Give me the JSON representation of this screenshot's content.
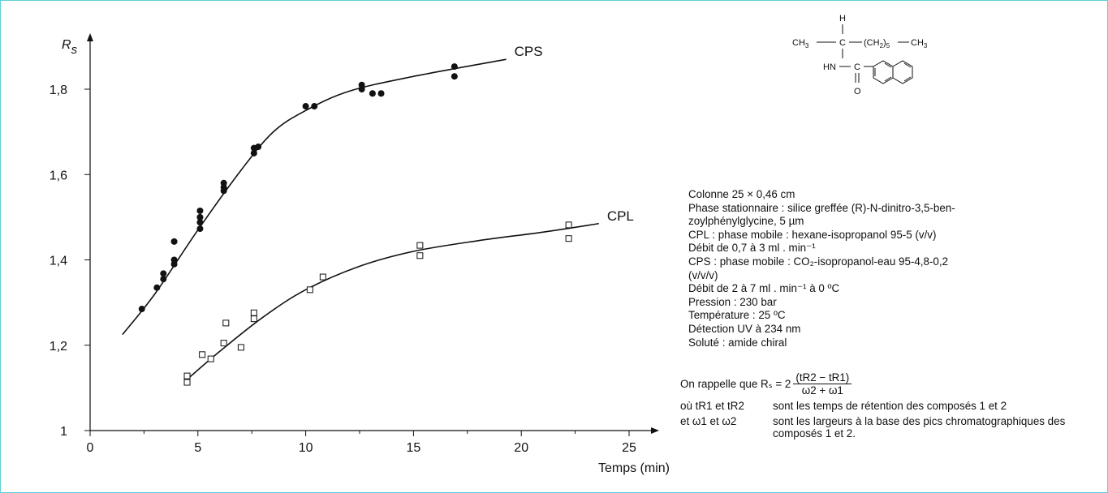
{
  "chart_data": {
    "type": "scatter",
    "title": "",
    "ylabel": "Rs",
    "ylabel_main": "R",
    "ylabel_sub": "s",
    "xlabel": "Temps (min)",
    "xlim": [
      0,
      27
    ],
    "ylim": [
      1,
      1.9
    ],
    "x_ticks": [
      0,
      5,
      10,
      15,
      20,
      25
    ],
    "x_tick_labels": [
      "0",
      "5",
      "10",
      "15",
      "20",
      "25"
    ],
    "y_ticks": [
      1,
      1.2,
      1.4,
      1.6,
      1.8
    ],
    "y_tick_labels": [
      "1",
      "1,2",
      "1,4",
      "1,6",
      "1,8"
    ],
    "grid": false,
    "legend": "none",
    "series": [
      {
        "name": "CPS",
        "marker": "filled-circle",
        "points": [
          [
            2.4,
            1.285
          ],
          [
            3.1,
            1.335
          ],
          [
            3.4,
            1.355
          ],
          [
            3.4,
            1.368
          ],
          [
            3.9,
            1.39
          ],
          [
            3.9,
            1.4
          ],
          [
            3.9,
            1.443
          ],
          [
            5.1,
            1.473
          ],
          [
            5.1,
            1.488
          ],
          [
            5.1,
            1.5
          ],
          [
            5.1,
            1.515
          ],
          [
            6.2,
            1.562
          ],
          [
            6.2,
            1.57
          ],
          [
            6.2,
            1.58
          ],
          [
            7.6,
            1.65
          ],
          [
            7.6,
            1.662
          ],
          [
            7.8,
            1.665
          ],
          [
            10.0,
            1.76
          ],
          [
            10.4,
            1.76
          ],
          [
            12.6,
            1.8
          ],
          [
            12.6,
            1.81
          ],
          [
            13.1,
            1.79
          ],
          [
            13.5,
            1.79
          ],
          [
            16.9,
            1.83
          ],
          [
            16.9,
            1.853
          ]
        ],
        "curve": [
          [
            1.5,
            1.225
          ],
          [
            3,
            1.32
          ],
          [
            5,
            1.47
          ],
          [
            7,
            1.61
          ],
          [
            8.5,
            1.7
          ],
          [
            10,
            1.75
          ],
          [
            12,
            1.795
          ],
          [
            15,
            1.83
          ],
          [
            19.3,
            1.87
          ]
        ]
      },
      {
        "name": "CPL",
        "marker": "open-square",
        "points": [
          [
            4.5,
            1.113
          ],
          [
            4.5,
            1.128
          ],
          [
            5.2,
            1.178
          ],
          [
            5.6,
            1.168
          ],
          [
            6.2,
            1.205
          ],
          [
            6.3,
            1.252
          ],
          [
            7.0,
            1.195
          ],
          [
            7.6,
            1.262
          ],
          [
            7.6,
            1.276
          ],
          [
            10.2,
            1.33
          ],
          [
            10.8,
            1.36
          ],
          [
            15.3,
            1.41
          ],
          [
            15.3,
            1.434
          ],
          [
            22.2,
            1.45
          ],
          [
            22.2,
            1.482
          ]
        ],
        "curve": [
          [
            4.5,
            1.12
          ],
          [
            6,
            1.185
          ],
          [
            8,
            1.265
          ],
          [
            10,
            1.33
          ],
          [
            12.5,
            1.385
          ],
          [
            15,
            1.42
          ],
          [
            18,
            1.445
          ],
          [
            21,
            1.465
          ],
          [
            23.6,
            1.485
          ]
        ]
      }
    ]
  },
  "molecule": {
    "h": "H",
    "ch3_left": "CH",
    "ch3_sub": "3",
    "c_center": "C",
    "ch2_group": "(CH",
    "ch2_sub": "2",
    "ch2_close": ")",
    "ch2_count": "5",
    "ch3_right": "CH",
    "hn": "HN",
    "c_amide": "C",
    "o": "O"
  },
  "info": {
    "lines": [
      "Colonne 25 × 0,46 cm",
      "Phase stationnaire : silice greffée (R)-N-dinitro-3,5-ben-",
      "zoylphénylglycine, 5 µm",
      "CPL : phase mobile : hexane-isopropanol 95-5 (v/v)",
      "Débit de 0,7 à 3 ml . min⁻¹",
      "CPS : phase mobile : CO₂-isopropanol-eau 95-4,8-0,2",
      "(v/v/v)",
      "Débit de 2 à 7 ml . min⁻¹ à 0 ºC",
      "Pression : 230 bar",
      "Température : 25 ºC",
      "Détection UV à 234 nm",
      "Soluté : amide chiral"
    ],
    "formula_intro": "On rappelle que Rₛ = 2",
    "formula_num": "(tR2 − tR1)",
    "formula_den": "ω2 + ω1",
    "def1_key": "où  tR1 et tR2",
    "def1_text": "sont les temps de rétention des composés 1 et 2",
    "def2_key": "et   ω1 et ω2",
    "def2_text": "sont les largeurs à la base des pics chromatographiques des composés 1 et 2."
  }
}
